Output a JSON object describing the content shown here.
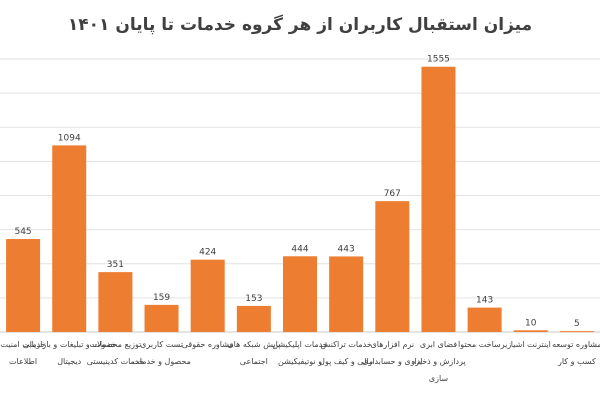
{
  "chart_data": {
    "type": "bar",
    "title": "میزان استقبال کاربران از هر گروه خدمات تا پایان ۱۴۰۱",
    "xlabel": "",
    "ylabel": "",
    "ylim": [
      0,
      1700
    ],
    "grid": true,
    "bar_color": "#ED7D31",
    "categories": [
      [
        "خدمات امنیت",
        "اطلاعات"
      ],
      [
        "خدمات و تبلیغات و بازاریابی",
        "دیجیتال"
      ],
      [
        "توزیع محصولات",
        "خدمات کدینیستی"
      ],
      [
        "تست کاربری",
        "محصول و خدمات"
      ],
      [
        "مشاوره حقوقی"
      ],
      [
        "پایش شبکه های",
        "اجتماعی"
      ],
      [
        "خدمات اپلیکیشن",
        "و نوتیفیکیشن"
      ],
      [
        "خدمات تراکنش",
        "مالی و کیف پول"
      ],
      [
        "نرم افزارهای",
        "اداری و حسابداری"
      ],
      [
        "فضای ابری",
        "پردازش و ذخیره",
        "سازی"
      ],
      [
        "زیرساخت محتوا"
      ],
      [
        "اینترنت اشیا"
      ],
      [
        "مشاوره توسعه",
        "کسب و کار"
      ]
    ],
    "values": [
      545,
      1094,
      351,
      159,
      424,
      153,
      444,
      443,
      767,
      1555,
      143,
      10,
      5
    ]
  }
}
